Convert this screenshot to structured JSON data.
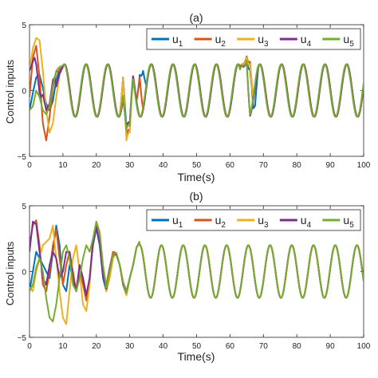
{
  "chart_data": [
    {
      "type": "line",
      "title": "(a)",
      "xlabel": "Time(s)",
      "ylabel": "Control inputs",
      "xlim": [
        0,
        100
      ],
      "ylim": [
        -5,
        5
      ],
      "xticks": [
        "0",
        "10",
        "20",
        "30",
        "40",
        "50",
        "60",
        "70",
        "80",
        "90",
        "100"
      ],
      "yticks": [
        "-5",
        "0",
        "5"
      ],
      "grid": false,
      "legend": "top-right, horizontal",
      "steady_state": {
        "amplitude": 2.0,
        "offset": 0.0,
        "period": 6.5
      },
      "series": [
        {
          "name": "u1",
          "color": "#0072BD",
          "transient": [
            [
              0,
              -1.5
            ],
            [
              1,
              -0.2
            ],
            [
              2,
              1.0
            ],
            [
              3,
              1.2
            ],
            [
              4,
              0.2
            ],
            [
              5,
              -1.0
            ],
            [
              6,
              -1.5
            ],
            [
              7,
              -0.8
            ],
            [
              8,
              0.8
            ],
            [
              9,
              1.6
            ],
            [
              10,
              1.8
            ]
          ],
          "events": [
            [
              28,
              1.0
            ],
            [
              29,
              -2.8
            ],
            [
              30,
              -2.5
            ],
            [
              33,
              1.2
            ],
            [
              34,
              1.5
            ],
            [
              64,
              1.8
            ],
            [
              65,
              2.3
            ],
            [
              66,
              1.6
            ],
            [
              67,
              -0.6
            ],
            [
              67.5,
              -1.2
            ]
          ]
        },
        {
          "name": "u2",
          "color": "#D95319",
          "transient": [
            [
              0,
              -0.5
            ],
            [
              1,
              2.5
            ],
            [
              2,
              3.4
            ],
            [
              3,
              1.0
            ],
            [
              4,
              -2.5
            ],
            [
              5,
              -3.8
            ],
            [
              6,
              -2.0
            ],
            [
              7,
              0.2
            ],
            [
              8,
              1.4
            ],
            [
              9,
              1.5
            ],
            [
              10,
              1.8
            ]
          ],
          "events": [
            [
              28,
              1.0
            ],
            [
              29,
              -3.5
            ],
            [
              30,
              -3.0
            ],
            [
              33,
              1.0
            ],
            [
              64,
              2.0
            ],
            [
              65,
              2.6
            ],
            [
              66,
              2.2
            ]
          ]
        },
        {
          "name": "u3",
          "color": "#EDB120",
          "transient": [
            [
              0,
              1.5
            ],
            [
              1,
              3.2
            ],
            [
              2,
              4.0
            ],
            [
              3,
              3.8
            ],
            [
              4,
              1.5
            ],
            [
              5,
              -1.5
            ],
            [
              6,
              -3.2
            ],
            [
              7,
              -2.5
            ],
            [
              8,
              -0.5
            ],
            [
              9,
              1.2
            ],
            [
              10,
              1.8
            ]
          ],
          "events": [
            [
              28,
              1.0
            ],
            [
              29,
              -3.8
            ],
            [
              30,
              -3.2
            ],
            [
              64,
              2.0
            ],
            [
              65,
              2.5
            ],
            [
              66,
              2.0
            ]
          ]
        },
        {
          "name": "u4",
          "color": "#7E2F8E",
          "transient": [
            [
              0,
              1.5
            ],
            [
              1,
              2.2
            ],
            [
              1.5,
              2.5
            ],
            [
              2,
              2.0
            ],
            [
              3,
              -0.2
            ],
            [
              3.5,
              -0.5
            ],
            [
              4,
              -0.3
            ],
            [
              5,
              -1.5
            ],
            [
              6,
              -1.0
            ],
            [
              7,
              0.8
            ],
            [
              7.5,
              1.0
            ],
            [
              8,
              0.3
            ],
            [
              9,
              1.3
            ],
            [
              10,
              1.8
            ]
          ],
          "events": [
            [
              29,
              -2.8
            ],
            [
              30,
              -2.5
            ],
            [
              64,
              1.8
            ],
            [
              65,
              2.2
            ]
          ]
        },
        {
          "name": "u5",
          "color": "#77AC30",
          "transient": [
            [
              0,
              -1.5
            ],
            [
              1,
              -1.2
            ],
            [
              2,
              0.0
            ],
            [
              3,
              -0.5
            ],
            [
              4,
              -1.5
            ],
            [
              5,
              -1.8
            ],
            [
              6,
              -1.2
            ],
            [
              7,
              0.4
            ],
            [
              8,
              1.5
            ],
            [
              9,
              1.8
            ],
            [
              10,
              1.9
            ]
          ],
          "events": [
            [
              29,
              -3.0
            ],
            [
              30,
              -2.7
            ],
            [
              64,
              1.9
            ],
            [
              65,
              2.3
            ]
          ]
        }
      ]
    },
    {
      "type": "line",
      "title": "(b)",
      "xlabel": "Time(s)",
      "ylabel": "Control inputs",
      "xlim": [
        0,
        100
      ],
      "ylim": [
        -5,
        5
      ],
      "xticks": [
        "0",
        "10",
        "20",
        "30",
        "40",
        "50",
        "60",
        "70",
        "80",
        "90",
        "100"
      ],
      "yticks": [
        "-5",
        "0",
        "5"
      ],
      "grid": false,
      "legend": "top-right, horizontal",
      "steady_state": {
        "amplitude": 2.0,
        "offset": 0.0,
        "period": 6.5
      },
      "series": [
        {
          "name": "u1",
          "color": "#0072BD",
          "transient": [
            [
              0,
              -1.5
            ],
            [
              2,
              1.5
            ],
            [
              4,
              0.5
            ],
            [
              6,
              -0.5
            ],
            [
              7,
              1.5
            ],
            [
              8,
              3.5
            ],
            [
              9,
              2.0
            ],
            [
              10,
              -1.0
            ],
            [
              11,
              -1.5
            ],
            [
              12,
              0.5
            ],
            [
              13,
              -0.5
            ],
            [
              14,
              -1.5
            ],
            [
              15,
              0.5
            ],
            [
              16,
              -0.5
            ],
            [
              17,
              -1.8
            ],
            [
              18,
              -0.5
            ],
            [
              19,
              2.0
            ],
            [
              20,
              3.3
            ],
            [
              21,
              2.0
            ],
            [
              22,
              -0.5
            ],
            [
              23,
              -1.5
            ],
            [
              24,
              0.0
            ],
            [
              25,
              1.2
            ],
            [
              26,
              1.3
            ],
            [
              27,
              0.5
            ],
            [
              28,
              -0.8
            ],
            [
              29,
              -1.5
            ],
            [
              30,
              -0.5
            ],
            [
              31,
              0.5
            ],
            [
              32,
              1.8
            ],
            [
              33,
              2.3
            ]
          ]
        },
        {
          "name": "u2",
          "color": "#D95319",
          "transient": [
            [
              0,
              2.0
            ],
            [
              1,
              3.5
            ],
            [
              2,
              3.9
            ],
            [
              3,
              2.0
            ],
            [
              4,
              -1.0
            ],
            [
              5,
              -1.5
            ],
            [
              6,
              0.0
            ],
            [
              7,
              2.0
            ],
            [
              8,
              3.2
            ],
            [
              9,
              1.0
            ],
            [
              10,
              -1.0
            ],
            [
              11,
              0.5
            ],
            [
              12,
              1.5
            ],
            [
              13,
              0.0
            ],
            [
              14,
              -1.5
            ],
            [
              15,
              0.0
            ],
            [
              16,
              -1.0
            ],
            [
              17,
              -2.2
            ],
            [
              18,
              -0.5
            ],
            [
              19,
              2.5
            ],
            [
              20,
              3.6
            ],
            [
              21,
              2.5
            ],
            [
              22,
              -0.2
            ],
            [
              23,
              -1.0
            ],
            [
              24,
              0.3
            ],
            [
              25,
              1.5
            ],
            [
              26,
              1.4
            ],
            [
              27,
              0.5
            ],
            [
              28,
              -1.0
            ],
            [
              29,
              -1.8
            ],
            [
              30,
              -0.5
            ],
            [
              31,
              0.5
            ],
            [
              32,
              1.8
            ],
            [
              33,
              2.3
            ]
          ]
        },
        {
          "name": "u3",
          "color": "#EDB120",
          "transient": [
            [
              0,
              -1.2
            ],
            [
              1,
              -1.5
            ],
            [
              2,
              0.0
            ],
            [
              4,
              2.0
            ],
            [
              6,
              2.5
            ],
            [
              7,
              3.5
            ],
            [
              8,
              1.0
            ],
            [
              9,
              -1.5
            ],
            [
              10,
              -3.5
            ],
            [
              11,
              -4.0
            ],
            [
              12,
              -1.5
            ],
            [
              13,
              1.0
            ],
            [
              14,
              2.0
            ],
            [
              15,
              0.0
            ],
            [
              16,
              -2.5
            ],
            [
              17,
              -3.0
            ],
            [
              18,
              -1.0
            ],
            [
              19,
              2.5
            ],
            [
              20,
              3.5
            ],
            [
              21,
              2.5
            ],
            [
              22,
              0.0
            ],
            [
              23,
              -1.5
            ],
            [
              24,
              -0.5
            ],
            [
              25,
              1.0
            ],
            [
              26,
              1.4
            ],
            [
              27,
              0.5
            ],
            [
              28,
              -0.8
            ],
            [
              29,
              -1.8
            ],
            [
              30,
              -0.5
            ],
            [
              31,
              0.5
            ],
            [
              32,
              1.8
            ],
            [
              33,
              2.3
            ]
          ]
        },
        {
          "name": "u4",
          "color": "#7E2F8E",
          "transient": [
            [
              0,
              1.5
            ],
            [
              1,
              3.8
            ],
            [
              2,
              3.6
            ],
            [
              3,
              1.5
            ],
            [
              4,
              -0.5
            ],
            [
              5,
              -1.0
            ],
            [
              6,
              0.5
            ],
            [
              7,
              1.5
            ],
            [
              8,
              1.0
            ],
            [
              9,
              -0.5
            ],
            [
              10,
              0.0
            ],
            [
              11,
              1.5
            ],
            [
              12,
              1.5
            ],
            [
              13,
              -0.5
            ],
            [
              14,
              -1.5
            ],
            [
              15,
              0.5
            ],
            [
              16,
              -0.5
            ],
            [
              17,
              -1.8
            ],
            [
              18,
              -0.5
            ],
            [
              19,
              2.2
            ],
            [
              20,
              3.4
            ],
            [
              21,
              2.2
            ],
            [
              22,
              -0.3
            ],
            [
              23,
              -1.3
            ],
            [
              24,
              0.2
            ],
            [
              25,
              1.3
            ],
            [
              26,
              1.3
            ],
            [
              27,
              0.5
            ],
            [
              28,
              -0.9
            ],
            [
              29,
              -1.6
            ],
            [
              30,
              -0.5
            ],
            [
              31,
              0.5
            ],
            [
              32,
              1.8
            ],
            [
              33,
              2.3
            ]
          ]
        },
        {
          "name": "u5",
          "color": "#77AC30",
          "transient": [
            [
              0,
              -1.5
            ],
            [
              1,
              -1.0
            ],
            [
              2,
              0.3
            ],
            [
              3,
              1.0
            ],
            [
              4,
              0.0
            ],
            [
              5,
              -2.0
            ],
            [
              6,
              -3.5
            ],
            [
              7,
              -3.8
            ],
            [
              8,
              -2.5
            ],
            [
              9,
              -0.5
            ],
            [
              10,
              1.5
            ],
            [
              11,
              2.0
            ],
            [
              12,
              1.0
            ],
            [
              13,
              -1.0
            ],
            [
              14,
              -1.5
            ],
            [
              15,
              -0.5
            ],
            [
              16,
              1.0
            ],
            [
              17,
              2.0
            ],
            [
              18,
              1.5
            ],
            [
              19,
              2.5
            ],
            [
              20,
              3.8
            ],
            [
              21,
              3.0
            ],
            [
              22,
              0.5
            ],
            [
              23,
              -1.2
            ],
            [
              24,
              0.0
            ],
            [
              25,
              1.3
            ],
            [
              26,
              1.4
            ],
            [
              27,
              0.5
            ],
            [
              28,
              -0.8
            ],
            [
              29,
              -1.6
            ],
            [
              30,
              -0.5
            ],
            [
              31,
              0.5
            ],
            [
              32,
              1.8
            ],
            [
              33,
              2.3
            ]
          ]
        }
      ]
    }
  ]
}
